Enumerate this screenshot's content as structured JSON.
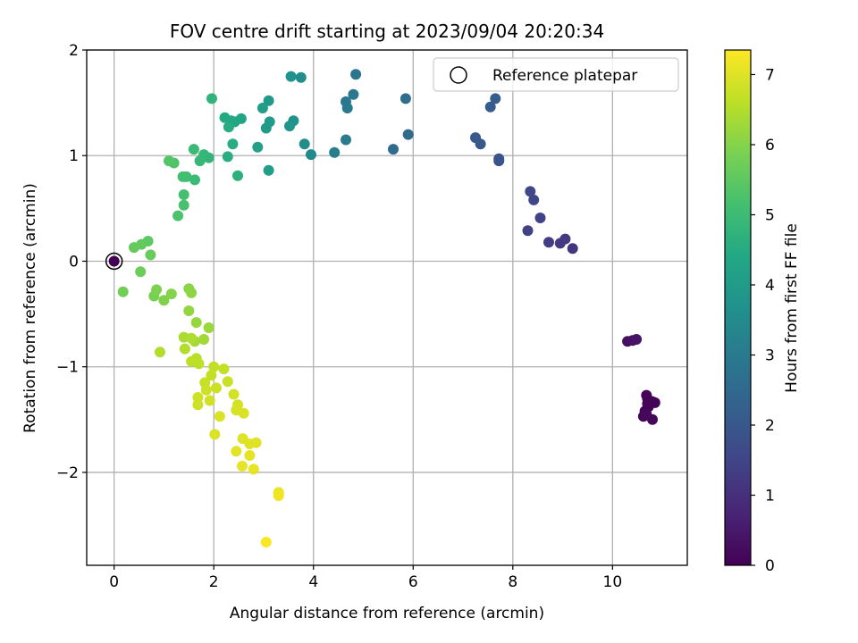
{
  "chart_data": {
    "type": "scatter",
    "title": "FOV centre drift starting at 2023/09/04 20:20:34",
    "xlabel": "Angular distance from reference (arcmin)",
    "ylabel": "Rotation from reference (arcmin)",
    "xlim": [
      -0.55,
      11.5
    ],
    "ylim": [
      -2.88,
      2.0
    ],
    "xticks": [
      0,
      2,
      4,
      6,
      8,
      10
    ],
    "xtick_labels": [
      "0",
      "2",
      "4",
      "6",
      "8",
      "10"
    ],
    "yticks": [
      -2,
      -1,
      0,
      1,
      2
    ],
    "ytick_labels": [
      "−2",
      "−1",
      "0",
      "1",
      "2"
    ],
    "grid": true,
    "colormap": "viridis",
    "colorbar": {
      "label": "Hours from first FF file",
      "range": [
        0,
        7.35
      ],
      "ticks": [
        0,
        1,
        2,
        3,
        4,
        5,
        6,
        7
      ],
      "tick_labels": [
        "0",
        "1",
        "2",
        "3",
        "4",
        "5",
        "6",
        "7"
      ]
    },
    "legend": {
      "position": "top-right",
      "entries": [
        "Reference platepar"
      ]
    },
    "reference_point": {
      "x": 0,
      "y": 0,
      "name": "Reference platepar"
    },
    "points": [
      [
        10.8,
        -1.33,
        0.02
      ],
      [
        10.85,
        -1.34,
        0.04
      ],
      [
        10.7,
        -1.35,
        0.05
      ],
      [
        10.68,
        -1.27,
        0.06
      ],
      [
        10.7,
        -1.3,
        0.07
      ],
      [
        10.72,
        -1.38,
        0.08
      ],
      [
        10.65,
        -1.42,
        0.09
      ],
      [
        10.62,
        -1.47,
        0.1
      ],
      [
        10.8,
        -1.5,
        0.12
      ],
      [
        10.68,
        -1.45,
        0.14
      ],
      [
        10.3,
        -0.76,
        0.3
      ],
      [
        10.4,
        -0.75,
        0.35
      ],
      [
        10.48,
        -0.74,
        0.4
      ],
      [
        9.2,
        0.12,
        1.1
      ],
      [
        9.05,
        0.21,
        1.2
      ],
      [
        8.95,
        0.17,
        1.25
      ],
      [
        8.72,
        0.18,
        1.3
      ],
      [
        8.3,
        0.29,
        1.4
      ],
      [
        8.55,
        0.41,
        1.45
      ],
      [
        8.42,
        0.58,
        1.55
      ],
      [
        8.35,
        0.66,
        1.6
      ],
      [
        7.72,
        0.95,
        1.85
      ],
      [
        7.72,
        0.97,
        1.9
      ],
      [
        7.35,
        1.11,
        2.0
      ],
      [
        7.25,
        1.17,
        2.05
      ],
      [
        7.55,
        1.46,
        2.15
      ],
      [
        7.65,
        1.54,
        2.2
      ],
      [
        5.9,
        1.2,
        2.55
      ],
      [
        5.6,
        1.06,
        2.6
      ],
      [
        5.85,
        1.54,
        2.65
      ],
      [
        4.85,
        1.77,
        2.85
      ],
      [
        4.8,
        1.58,
        2.9
      ],
      [
        4.65,
        1.51,
        2.95
      ],
      [
        4.68,
        1.45,
        3.0
      ],
      [
        4.65,
        1.15,
        3.05
      ],
      [
        4.42,
        1.03,
        3.15
      ],
      [
        3.95,
        1.01,
        3.45
      ],
      [
        3.82,
        1.11,
        3.55
      ],
      [
        3.75,
        1.74,
        3.6
      ],
      [
        3.55,
        1.75,
        3.7
      ],
      [
        3.6,
        1.33,
        3.75
      ],
      [
        3.52,
        1.28,
        3.8
      ],
      [
        3.1,
        1.52,
        3.9
      ],
      [
        3.12,
        1.32,
        3.95
      ],
      [
        3.05,
        1.26,
        4.0
      ],
      [
        2.98,
        1.45,
        4.05
      ],
      [
        3.1,
        0.86,
        4.1
      ],
      [
        2.88,
        1.08,
        4.2
      ],
      [
        2.55,
        1.35,
        4.3
      ],
      [
        2.42,
        1.32,
        4.35
      ],
      [
        2.35,
        1.33,
        4.4
      ],
      [
        2.22,
        1.36,
        4.45
      ],
      [
        2.3,
        1.27,
        4.5
      ],
      [
        2.38,
        1.11,
        4.55
      ],
      [
        2.28,
        0.99,
        4.6
      ],
      [
        2.48,
        0.81,
        4.65
      ],
      [
        1.96,
        1.54,
        4.75
      ],
      [
        1.9,
        0.98,
        4.8
      ],
      [
        1.8,
        1.01,
        4.85
      ],
      [
        1.72,
        0.95,
        4.9
      ],
      [
        1.6,
        1.06,
        4.95
      ],
      [
        1.62,
        0.77,
        5.0
      ],
      [
        1.45,
        0.8,
        5.05
      ],
      [
        1.38,
        0.8,
        5.1
      ],
      [
        1.4,
        0.63,
        5.15
      ],
      [
        1.4,
        0.53,
        5.2
      ],
      [
        1.28,
        0.43,
        5.25
      ],
      [
        1.2,
        0.93,
        5.3
      ],
      [
        1.1,
        0.95,
        5.35
      ],
      [
        0.68,
        0.19,
        5.5
      ],
      [
        0.55,
        0.16,
        5.55
      ],
      [
        0.4,
        0.13,
        5.6
      ],
      [
        0.73,
        0.06,
        5.65
      ],
      [
        0.53,
        -0.1,
        5.7
      ],
      [
        0.18,
        -0.29,
        5.75
      ],
      [
        0.8,
        -0.33,
        5.85
      ],
      [
        0.85,
        -0.27,
        5.9
      ],
      [
        1.0,
        -0.37,
        5.95
      ],
      [
        1.15,
        -0.31,
        6.0
      ],
      [
        1.5,
        -0.26,
        6.05
      ],
      [
        1.55,
        -0.3,
        6.1
      ],
      [
        1.5,
        -0.47,
        6.15
      ],
      [
        1.65,
        -0.58,
        6.2
      ],
      [
        1.9,
        -0.63,
        6.25
      ],
      [
        1.8,
        -0.74,
        6.3
      ],
      [
        1.62,
        -0.76,
        6.35
      ],
      [
        1.4,
        -0.72,
        6.4
      ],
      [
        1.55,
        -0.73,
        6.45
      ],
      [
        1.42,
        -0.83,
        6.5
      ],
      [
        0.92,
        -0.86,
        6.5
      ],
      [
        1.65,
        -0.92,
        6.55
      ],
      [
        1.7,
        -0.97,
        6.6
      ],
      [
        1.55,
        -0.95,
        6.62
      ],
      [
        2.0,
        -1.0,
        6.65
      ],
      [
        2.2,
        -1.02,
        6.68
      ],
      [
        1.95,
        -1.08,
        6.7
      ],
      [
        1.82,
        -1.15,
        6.72
      ],
      [
        2.28,
        -1.14,
        6.74
      ],
      [
        1.85,
        -1.22,
        6.76
      ],
      [
        2.05,
        -1.2,
        6.78
      ],
      [
        1.68,
        -1.29,
        6.8
      ],
      [
        1.68,
        -1.36,
        6.82
      ],
      [
        1.92,
        -1.32,
        6.84
      ],
      [
        2.4,
        -1.26,
        6.86
      ],
      [
        2.48,
        -1.36,
        6.88
      ],
      [
        2.45,
        -1.41,
        6.9
      ],
      [
        2.6,
        -1.44,
        6.92
      ],
      [
        2.12,
        -1.47,
        6.94
      ],
      [
        2.02,
        -1.64,
        6.96
      ],
      [
        2.58,
        -1.68,
        6.98
      ],
      [
        2.72,
        -1.73,
        7.0
      ],
      [
        2.85,
        -1.72,
        7.02
      ],
      [
        2.45,
        -1.8,
        7.04
      ],
      [
        2.72,
        -1.84,
        7.06
      ],
      [
        2.57,
        -1.94,
        7.08
      ],
      [
        2.8,
        -1.97,
        7.1
      ],
      [
        3.3,
        -2.19,
        7.15
      ],
      [
        3.3,
        -2.22,
        7.2
      ],
      [
        3.05,
        -2.66,
        7.3
      ]
    ]
  }
}
